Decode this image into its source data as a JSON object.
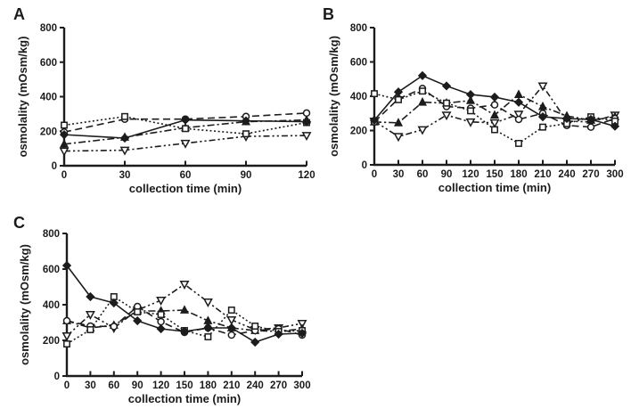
{
  "figure": {
    "background": "#ffffff",
    "ink_color": "#1c1c1c"
  },
  "panels": [
    {
      "letter": "A"
    },
    {
      "letter": "B"
    },
    {
      "letter": "C"
    }
  ],
  "chart_data": [
    {
      "type": "line",
      "panel": "A",
      "title": "",
      "xlabel": "collection time (min)",
      "ylabel": "osmolality (mOsm/kg)",
      "x": [
        0,
        30,
        60,
        90,
        120
      ],
      "ylim": [
        0,
        800
      ],
      "yticks": [
        0,
        200,
        400,
        600,
        800
      ],
      "grid": false,
      "legend": "none",
      "series": [
        {
          "name": "filled-diamond-solid",
          "marker": "diamond-filled",
          "linestyle": "solid",
          "values": [
            180,
            160,
            265,
            260,
            255
          ]
        },
        {
          "name": "open-square-dotted",
          "marker": "square-open",
          "linestyle": "dotted",
          "values": [
            235,
            285,
            215,
            185,
            250
          ]
        },
        {
          "name": "open-circle-dashed",
          "marker": "circle-open",
          "linestyle": "dashed",
          "values": [
            195,
            270,
            270,
            285,
            305
          ]
        },
        {
          "name": "filled-triangle-dashdot",
          "marker": "triangle-filled",
          "linestyle": "dashdot",
          "values": [
            125,
            165,
            220,
            255,
            265
          ]
        },
        {
          "name": "open-invtriangle-dashdotdot",
          "marker": "triangle-down-open",
          "linestyle": "dashdotdot",
          "values": [
            85,
            90,
            130,
            170,
            175
          ]
        }
      ]
    },
    {
      "type": "line",
      "panel": "B",
      "title": "",
      "xlabel": "collection time (min)",
      "ylabel": "osmolality (mOsm/kg)",
      "x": [
        0,
        30,
        60,
        90,
        120,
        150,
        180,
        210,
        240,
        270,
        300
      ],
      "ylim": [
        0,
        800
      ],
      "yticks": [
        0,
        200,
        400,
        600,
        800
      ],
      "grid": false,
      "legend": "none",
      "series": [
        {
          "name": "filled-diamond-solid",
          "marker": "diamond-filled",
          "linestyle": "solid",
          "values": [
            260,
            425,
            520,
            460,
            410,
            395,
            365,
            280,
            270,
            265,
            225
          ]
        },
        {
          "name": "open-square-dotted",
          "marker": "square-open",
          "linestyle": "dotted",
          "values": [
            415,
            380,
            430,
            360,
            315,
            205,
            125,
            220,
            240,
            280,
            255
          ]
        },
        {
          "name": "open-circle-dashed",
          "marker": "circle-open",
          "linestyle": "dashed",
          "values": [
            250,
            385,
            445,
            340,
            330,
            350,
            265,
            300,
            230,
            220,
            270
          ]
        },
        {
          "name": "filled-triangle-dashdot",
          "marker": "triangle-filled",
          "linestyle": "dashdot",
          "values": [
            250,
            245,
            365,
            360,
            375,
            290,
            410,
            340,
            285,
            260,
            280
          ]
        },
        {
          "name": "open-invtriangle-dashdotdot",
          "marker": "triangle-down-open",
          "linestyle": "dashdotdot",
          "values": [
            255,
            165,
            205,
            290,
            250,
            245,
            295,
            460,
            255,
            250,
            290
          ]
        }
      ]
    },
    {
      "type": "line",
      "panel": "C",
      "title": "",
      "xlabel": "collection time (min)",
      "ylabel": "osmolality (mOsm/kg)",
      "x": [
        0,
        30,
        60,
        90,
        120,
        150,
        180,
        210,
        240,
        270,
        300
      ],
      "ylim": [
        0,
        800
      ],
      "yticks": [
        0,
        200,
        400,
        600,
        800
      ],
      "grid": false,
      "legend": "none",
      "series": [
        {
          "name": "filled-diamond-solid",
          "marker": "diamond-filled",
          "linestyle": "solid",
          "values": [
            620,
            445,
            410,
            310,
            265,
            250,
            270,
            270,
            190,
            235,
            240
          ]
        },
        {
          "name": "open-square-dotted",
          "marker": "square-open",
          "linestyle": "dotted",
          "values": [
            180,
            260,
            445,
            360,
            345,
            255,
            220,
            370,
            280,
            250,
            255
          ]
        },
        {
          "name": "open-circle-dashed",
          "marker": "circle-open",
          "linestyle": "dashed",
          "values": [
            310,
            280,
            278,
            390,
            305,
            245,
            270,
            230,
            255,
            265,
            230
          ]
        },
        {
          "name": "filled-triangle-dashdot",
          "marker": "triangle-filled",
          "linestyle": "dashdot",
          "values": [
            310,
            270,
            285,
            365,
            365,
            370,
            310,
            270,
            255,
            250,
            265
          ]
        },
        {
          "name": "open-invtriangle-dashdotdot",
          "marker": "triangle-down-open",
          "linestyle": "dashdotdot",
          "values": [
            225,
            345,
            270,
            370,
            425,
            515,
            415,
            315,
            260,
            270,
            295
          ]
        }
      ]
    }
  ]
}
